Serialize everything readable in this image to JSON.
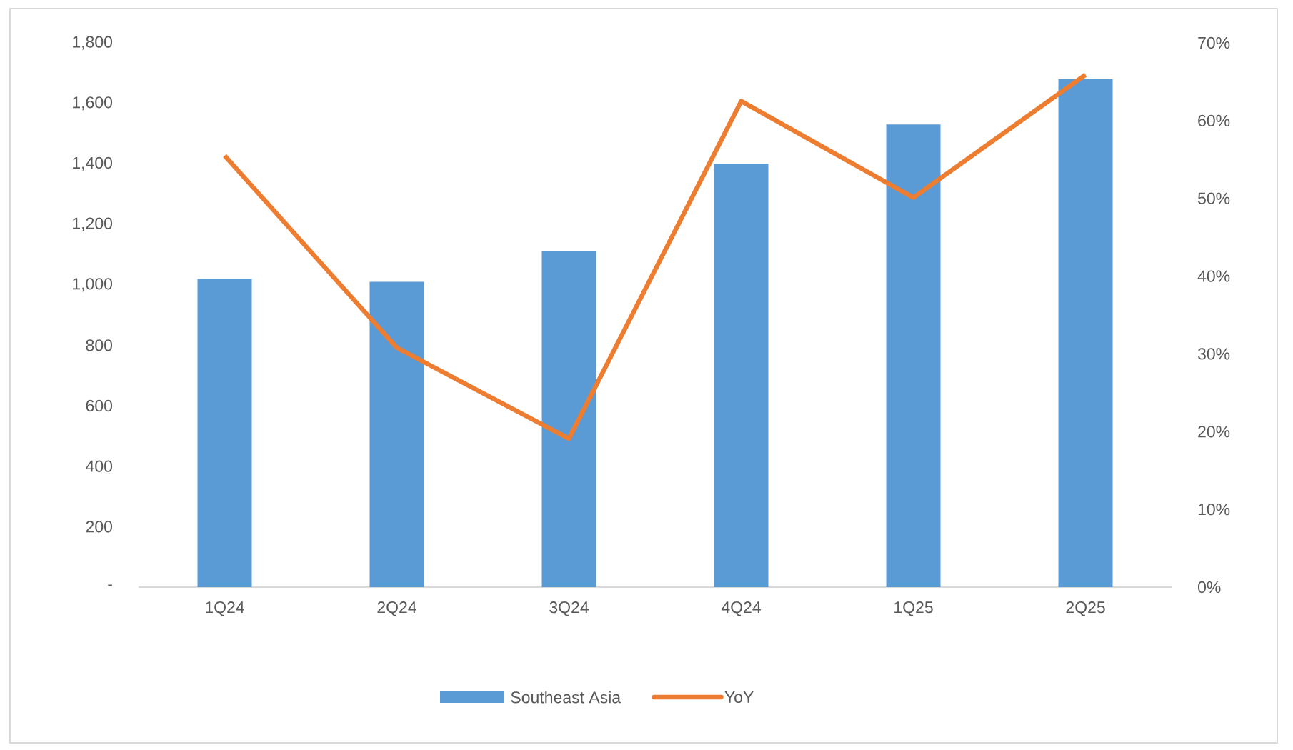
{
  "chart_data": {
    "type": "bar",
    "categories": [
      "1Q24",
      "2Q24",
      "3Q24",
      "4Q24",
      "1Q25",
      "2Q25"
    ],
    "series": [
      {
        "name": "Southeast Asia",
        "color": "#5b9bd5",
        "values": [
          1020,
          1010,
          1110,
          1400,
          1530,
          1680
        ]
      },
      {
        "name": "YoY",
        "type": "line",
        "axis": "y2",
        "color": "#ed7d31",
        "values": [
          55.5,
          30.8,
          19.1,
          62.5,
          50.1,
          65.9
        ]
      }
    ],
    "ylim": [
      0,
      1800
    ],
    "yticks": [
      {
        "value": 0,
        "label": "-"
      },
      {
        "value": 200,
        "label": "200"
      },
      {
        "value": 400,
        "label": "400"
      },
      {
        "value": 600,
        "label": "600"
      },
      {
        "value": 800,
        "label": "800"
      },
      {
        "value": 1000,
        "label": "1,000"
      },
      {
        "value": 1200,
        "label": "1,200"
      },
      {
        "value": 1400,
        "label": "1,400"
      },
      {
        "value": 1600,
        "label": "1,600"
      },
      {
        "value": 1800,
        "label": "1,800"
      }
    ],
    "y2lim": [
      0,
      70
    ],
    "y2ticks": [
      {
        "value": 0,
        "label": "0%"
      },
      {
        "value": 10,
        "label": "10%"
      },
      {
        "value": 20,
        "label": "20%"
      },
      {
        "value": 30,
        "label": "30%"
      },
      {
        "value": 40,
        "label": "40%"
      },
      {
        "value": 50,
        "label": "50%"
      },
      {
        "value": 60,
        "label": "60%"
      },
      {
        "value": 70,
        "label": "70%"
      }
    ],
    "legend": "bottom",
    "marker": "none",
    "line_style": "solid"
  }
}
